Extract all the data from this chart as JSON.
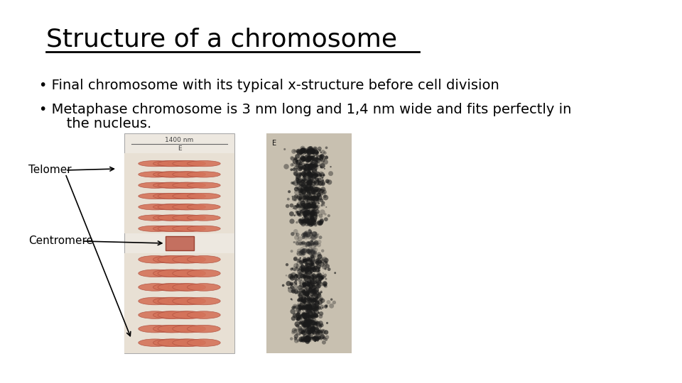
{
  "title": "Structure of a chromosome",
  "bullet1": "Final chromosome with its typical x-structure before cell division",
  "bullet2a": "Metaphase chromosome is 3 nm long and 1,4 nm wide and fits perfectly in",
  "bullet2b": "   the nucleus.",
  "label_telomer": "Telomer",
  "label_centromere": "Centromere",
  "bg_color": "#ffffff",
  "title_color": "#000000",
  "text_color": "#000000",
  "title_fontsize": 26,
  "bullet_fontsize": 14,
  "label_fontsize": 11,
  "coil_color": "#d4735a",
  "coil_edge": "#b05040",
  "cent_color": "#c47060",
  "cent_edge": "#9a4030",
  "diagram_bg": "#ede8e0",
  "diagram_border": "#aaaaaa",
  "em_bg": "#cccccc"
}
